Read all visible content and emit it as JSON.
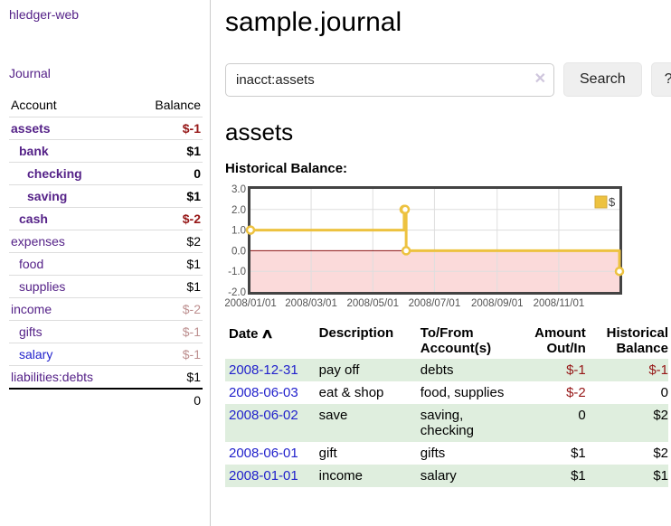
{
  "colors": {
    "link_purple": "#552288",
    "link_blue": "#2222cc",
    "negative": "#961717",
    "negative_muted": "#bd8f8f",
    "row_stripe_green": "#dfeede",
    "chart_gold": "#edc240",
    "chart_negative_fill": "#fbdada",
    "chart_zero_line": "#8b1010",
    "chart_border": "#434343"
  },
  "sidebar": {
    "brand": "hledger-web",
    "journal_link": "Journal",
    "accounts_table": {
      "headers": {
        "account": "Account",
        "balance": "Balance"
      },
      "rows": [
        {
          "name": "assets",
          "depth": 0,
          "bold": true,
          "name_style": "purple",
          "balance": "$-1",
          "balance_style": "neg"
        },
        {
          "name": "bank",
          "depth": 1,
          "bold": true,
          "name_style": "purple",
          "balance": "$1",
          "balance_style": "plain"
        },
        {
          "name": "checking",
          "depth": 2,
          "bold": true,
          "name_style": "purple",
          "balance": "0",
          "balance_style": "plain"
        },
        {
          "name": "saving",
          "depth": 2,
          "bold": true,
          "name_style": "purple",
          "balance": "$1",
          "balance_style": "plain"
        },
        {
          "name": "cash",
          "depth": 1,
          "bold": true,
          "name_style": "purple",
          "balance": "$-2",
          "balance_style": "neg"
        },
        {
          "name": "expenses",
          "depth": 0,
          "bold": false,
          "name_style": "purple",
          "balance": "$2",
          "balance_style": "plain"
        },
        {
          "name": "food",
          "depth": 1,
          "bold": false,
          "name_style": "purple",
          "balance": "$1",
          "balance_style": "plain"
        },
        {
          "name": "supplies",
          "depth": 1,
          "bold": false,
          "name_style": "purple",
          "balance": "$1",
          "balance_style": "plain"
        },
        {
          "name": "income",
          "depth": 0,
          "bold": false,
          "name_style": "purple",
          "balance": "$-2",
          "balance_style": "neg-muted"
        },
        {
          "name": "gifts",
          "depth": 1,
          "bold": false,
          "name_style": "purple",
          "balance": "$-1",
          "balance_style": "neg-muted"
        },
        {
          "name": "salary",
          "depth": 1,
          "bold": false,
          "name_style": "blue",
          "balance": "$-1",
          "balance_style": "neg-muted"
        },
        {
          "name": "liabilities:debts",
          "depth": 0,
          "bold": false,
          "name_style": "purple",
          "balance": "$1",
          "balance_style": "plain"
        }
      ],
      "total": "0"
    }
  },
  "main": {
    "title": "sample.journal",
    "search": {
      "value": "inacct:assets",
      "clear_icon": "✕",
      "button_label": "Search",
      "help_label": "?"
    },
    "account_heading": "assets",
    "chart_label": "Historical Balance:"
  },
  "chart_data": {
    "type": "line",
    "step": true,
    "title": "Historical Balance",
    "legend_position": "top-right",
    "grid": true,
    "ylim": [
      -2,
      3
    ],
    "yticks": [
      3.0,
      2.0,
      1.0,
      0.0,
      -1.0,
      -2.0
    ],
    "xrange_days": [
      0,
      365
    ],
    "xticks": [
      {
        "label": "2008/01/01",
        "day": 0
      },
      {
        "label": "2008/03/01",
        "day": 60
      },
      {
        "label": "2008/05/01",
        "day": 121
      },
      {
        "label": "2008/07/01",
        "day": 182
      },
      {
        "label": "2008/09/01",
        "day": 244
      },
      {
        "label": "2008/11/01",
        "day": 305
      }
    ],
    "series": [
      {
        "name": "$",
        "color": "#edc240",
        "points": [
          {
            "date": "2008-01-01",
            "day": 0,
            "y": 1
          },
          {
            "date": "2008-06-01",
            "day": 152,
            "y": 2
          },
          {
            "date": "2008-06-02",
            "day": 153,
            "y": 2
          },
          {
            "date": "2008-06-03",
            "day": 154,
            "y": 0
          },
          {
            "date": "2008-12-31",
            "day": 365,
            "y": -1
          }
        ]
      }
    ],
    "negative_region_fill": "#fbdada",
    "zero_line_color": "#8b1010"
  },
  "register": {
    "headers": {
      "date": "Date",
      "sort_icon": "∧",
      "description": "Description",
      "accounts": "To/From Account(s)",
      "amount": "Amount Out/In",
      "balance": "Historical Balance"
    },
    "rows": [
      {
        "date": "2008-12-31",
        "description": "pay off",
        "accounts": "debts",
        "amount": "$-1",
        "amount_style": "neg",
        "balance": "$-1",
        "balance_style": "neg"
      },
      {
        "date": "2008-06-03",
        "description": "eat & shop",
        "accounts": "food, supplies",
        "amount": "$-2",
        "amount_style": "neg",
        "balance": "0",
        "balance_style": "plain"
      },
      {
        "date": "2008-06-02",
        "description": "save",
        "accounts": "saving, checking",
        "amount": "0",
        "amount_style": "plain",
        "balance": "$2",
        "balance_style": "plain"
      },
      {
        "date": "2008-06-01",
        "description": "gift",
        "accounts": "gifts",
        "amount": "$1",
        "amount_style": "plain",
        "balance": "$2",
        "balance_style": "plain"
      },
      {
        "date": "2008-01-01",
        "description": "income",
        "accounts": "salary",
        "amount": "$1",
        "amount_style": "plain",
        "balance": "$1",
        "balance_style": "plain"
      }
    ]
  }
}
